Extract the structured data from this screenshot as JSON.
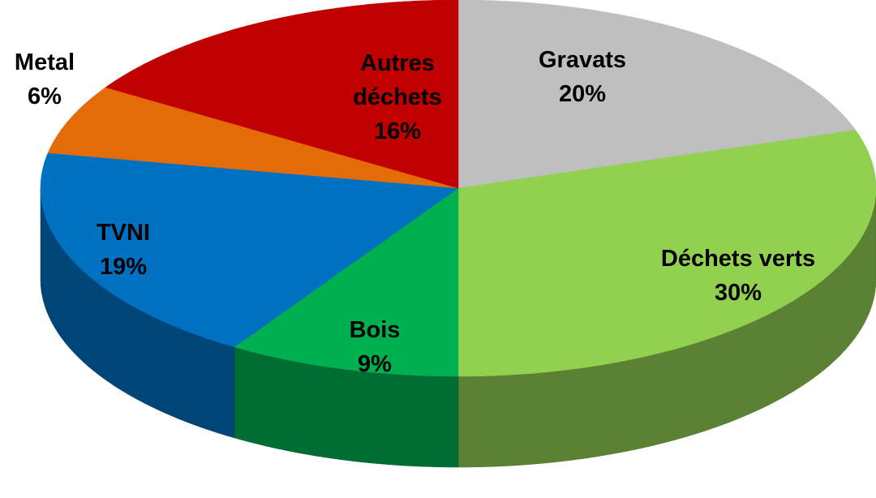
{
  "chart_data": {
    "type": "pie3d",
    "categories": [
      "Gravats",
      "Déchets verts",
      "Bois",
      "TVNI",
      "Metal",
      "Autres déchets"
    ],
    "values": [
      20,
      30,
      9,
      19,
      6,
      16
    ],
    "value_labels": [
      "20%",
      "30%",
      "9%",
      "19%",
      "6%",
      "16%"
    ],
    "colors": [
      "#bfbfbf",
      "#92d050",
      "#00b050",
      "#0070c0",
      "#e36c09",
      "#c00000"
    ]
  }
}
